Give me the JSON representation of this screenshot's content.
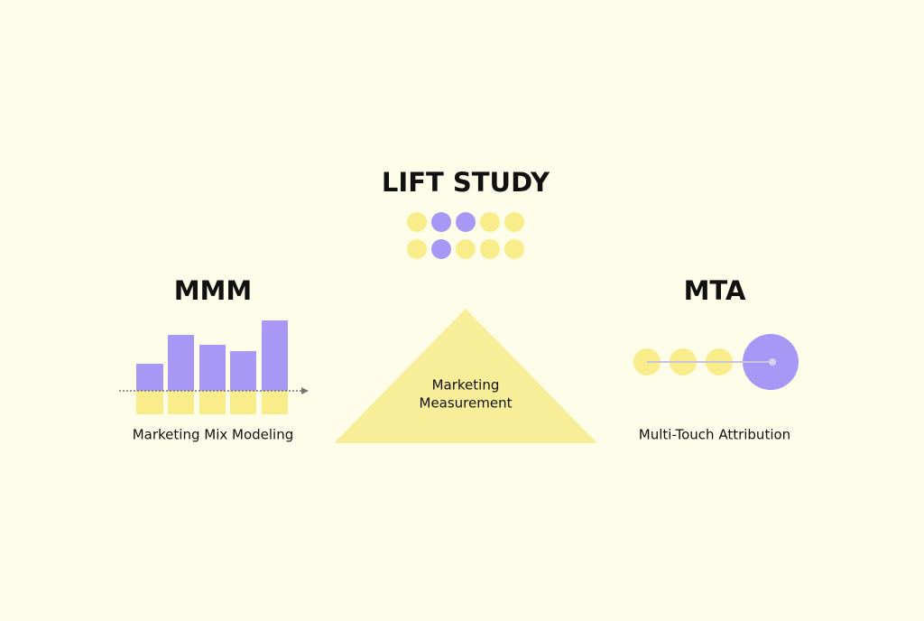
{
  "lift_study": {
    "title": "LIFT STUDY"
  },
  "mmm": {
    "title": "MMM",
    "subtitle": "Marketing Mix Modeling"
  },
  "center": {
    "lines": [
      "Marketing",
      "Measurement"
    ]
  },
  "mta": {
    "title": "MTA",
    "subtitle": "Multi-Touch Attribution"
  }
}
